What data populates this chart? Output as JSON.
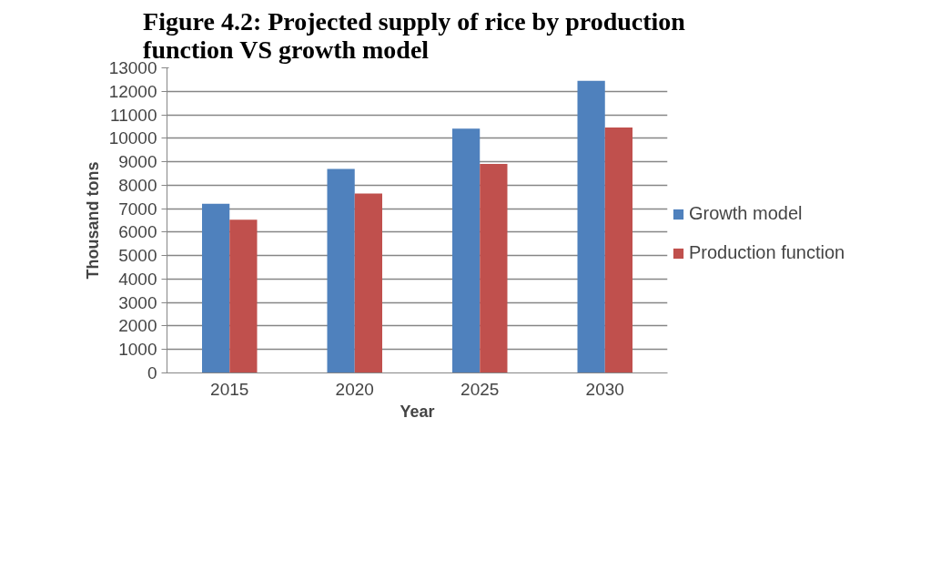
{
  "chart_data": {
    "type": "bar",
    "title": "Figure 4.2: Projected supply of  rice by production function VS growth model",
    "xlabel": "Year",
    "ylabel": "Thousand tons",
    "categories": [
      "2015",
      "2020",
      "2025",
      "2030"
    ],
    "series": [
      {
        "name": "Growth model",
        "color": "#4f81bd",
        "values": [
          7210,
          8690,
          10410,
          12450
        ]
      },
      {
        "name": "Production function",
        "color": "#c0504d",
        "values": [
          6530,
          7640,
          8910,
          10460
        ]
      }
    ],
    "ylim": [
      0,
      13000
    ],
    "yticks": [
      0,
      1000,
      2000,
      3000,
      4000,
      5000,
      6000,
      7000,
      8000,
      9000,
      10000,
      11000,
      12000,
      13000
    ],
    "grid": "y",
    "legend": "right"
  }
}
